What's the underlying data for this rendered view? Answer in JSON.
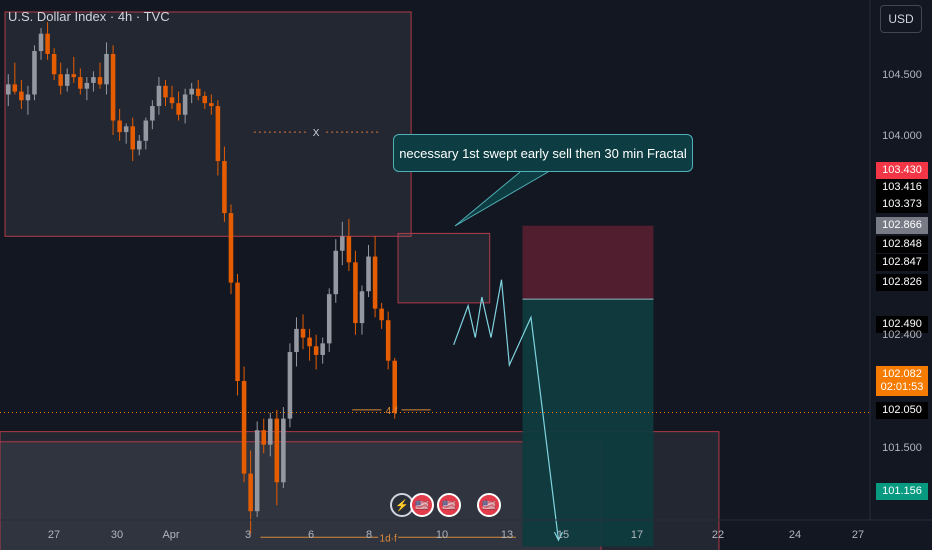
{
  "header": {
    "title": "U.S. Dollar Index · 4h · TVC"
  },
  "currency_button": {
    "label": "USD"
  },
  "callout": {
    "text": "necessary 1st swept early sell then 30 min Fractal"
  },
  "annotations": {
    "x_mark": "X",
    "fractal_4h": "4·f",
    "fractal_1d": "1d·f"
  },
  "colors": {
    "up": "#9598a1",
    "down": "#e65c00",
    "bg": "#131722",
    "zone_border": "#b23a48",
    "stop": "#5c2030",
    "target": "#0f3b3e",
    "accent": "#f57c00",
    "path": "#7fd3df"
  },
  "price_labels": [
    {
      "value": "104.500",
      "kind": "tick"
    },
    {
      "value": "104.000",
      "kind": "tick"
    },
    {
      "value": "103.430",
      "kind": "red"
    },
    {
      "value": "103.416",
      "kind": "dark"
    },
    {
      "value": "103.373",
      "kind": "dark"
    },
    {
      "value": "102.866",
      "kind": "grey"
    },
    {
      "value": "102.848",
      "kind": "dark"
    },
    {
      "value": "102.847",
      "kind": "dark"
    },
    {
      "value": "102.826",
      "kind": "dark"
    },
    {
      "value": "102.490",
      "kind": "dark"
    },
    {
      "value": "102.400",
      "kind": "tick"
    },
    {
      "value": "102.082",
      "kind": "orange",
      "sub": "02:01:53"
    },
    {
      "value": "102.050",
      "kind": "dark"
    },
    {
      "value": "101.500",
      "kind": "tick"
    },
    {
      "value": "101.156",
      "kind": "green"
    }
  ],
  "events": [
    "⚡",
    "🇺🇸",
    "🇺🇸",
    "🇺🇸"
  ],
  "chart_data": {
    "type": "candlestick",
    "symbol": "U.S. Dollar Index",
    "timeframe": "4h",
    "x_ticks": [
      "27",
      "30",
      "Apr",
      "3",
      "6",
      "8",
      "10",
      "13",
      "15",
      "17",
      "22",
      "24",
      "27"
    ],
    "y_ticks": [
      104.5,
      104.0,
      102.4,
      101.5
    ],
    "ylim": [
      100.9,
      105.1
    ],
    "current_price": 102.082,
    "countdown": "02:01:53",
    "ohlc": [
      [
        104.28,
        104.42,
        104.2,
        104.35
      ],
      [
        104.35,
        104.5,
        104.28,
        104.3
      ],
      [
        104.3,
        104.38,
        104.18,
        104.24
      ],
      [
        104.24,
        104.34,
        104.14,
        104.28
      ],
      [
        104.28,
        104.62,
        104.24,
        104.58
      ],
      [
        104.58,
        104.74,
        104.52,
        104.7
      ],
      [
        104.7,
        104.78,
        104.52,
        104.56
      ],
      [
        104.56,
        104.6,
        104.38,
        104.42
      ],
      [
        104.42,
        104.5,
        104.28,
        104.34
      ],
      [
        104.34,
        104.46,
        104.3,
        104.42
      ],
      [
        104.42,
        104.54,
        104.36,
        104.4
      ],
      [
        104.4,
        104.46,
        104.28,
        104.32
      ],
      [
        104.32,
        104.4,
        104.24,
        104.36
      ],
      [
        104.36,
        104.44,
        104.3,
        104.4
      ],
      [
        104.4,
        104.5,
        104.32,
        104.35
      ],
      [
        104.35,
        104.64,
        104.28,
        104.56
      ],
      [
        104.56,
        104.62,
        104.0,
        104.1
      ],
      [
        104.1,
        104.18,
        103.96,
        104.02
      ],
      [
        104.02,
        104.08,
        103.94,
        104.06
      ],
      [
        104.06,
        104.12,
        103.82,
        103.9
      ],
      [
        103.9,
        104.0,
        103.86,
        103.96
      ],
      [
        103.96,
        104.12,
        103.9,
        104.1
      ],
      [
        104.1,
        104.24,
        104.04,
        104.2
      ],
      [
        104.2,
        104.4,
        104.14,
        104.34
      ],
      [
        104.34,
        104.38,
        104.2,
        104.26
      ],
      [
        104.26,
        104.34,
        104.18,
        104.22
      ],
      [
        104.22,
        104.3,
        104.1,
        104.14
      ],
      [
        104.14,
        104.32,
        104.08,
        104.28
      ],
      [
        104.28,
        104.36,
        104.22,
        104.32
      ],
      [
        104.32,
        104.38,
        104.24,
        104.27
      ],
      [
        104.27,
        104.3,
        104.18,
        104.22
      ],
      [
        104.22,
        104.28,
        104.14,
        104.2
      ],
      [
        104.2,
        104.24,
        103.72,
        103.82
      ],
      [
        103.82,
        103.92,
        103.4,
        103.46
      ],
      [
        103.46,
        103.52,
        102.9,
        102.98
      ],
      [
        102.98,
        103.04,
        102.2,
        102.3
      ],
      [
        102.3,
        102.4,
        101.6,
        101.66
      ],
      [
        101.66,
        101.82,
        101.24,
        101.4
      ],
      [
        101.4,
        102.02,
        101.36,
        101.96
      ],
      [
        101.96,
        102.04,
        101.8,
        101.86
      ],
      [
        101.86,
        102.08,
        101.78,
        102.04
      ],
      [
        102.04,
        102.1,
        101.44,
        101.6
      ],
      [
        101.6,
        102.12,
        101.56,
        102.04
      ],
      [
        102.04,
        102.56,
        101.98,
        102.5
      ],
      [
        102.5,
        102.74,
        102.4,
        102.66
      ],
      [
        102.66,
        102.76,
        102.52,
        102.6
      ],
      [
        102.6,
        102.66,
        102.44,
        102.54
      ],
      [
        102.54,
        102.62,
        102.38,
        102.48
      ],
      [
        102.48,
        102.6,
        102.42,
        102.56
      ],
      [
        102.56,
        102.94,
        102.5,
        102.9
      ],
      [
        102.9,
        103.28,
        102.84,
        103.2
      ],
      [
        103.2,
        103.4,
        103.1,
        103.3
      ],
      [
        103.3,
        103.42,
        103.06,
        103.12
      ],
      [
        103.12,
        103.2,
        102.62,
        102.7
      ],
      [
        102.7,
        102.96,
        102.62,
        102.92
      ],
      [
        102.92,
        103.24,
        102.88,
        103.16
      ],
      [
        103.16,
        103.3,
        102.74,
        102.8
      ],
      [
        102.8,
        102.84,
        102.66,
        102.72
      ],
      [
        102.72,
        102.78,
        102.38,
        102.44
      ],
      [
        102.44,
        102.46,
        102.04,
        102.08
      ]
    ],
    "zones": [
      {
        "from": 0,
        "to": 62,
        "top": 104.85,
        "bottom": 103.3
      },
      {
        "from": 60,
        "to": 74,
        "top": 103.32,
        "bottom": 102.84
      },
      {
        "from": -1,
        "to": 109,
        "top": 101.95,
        "bottom": 100.95
      },
      {
        "from": -1,
        "to": 91,
        "top": 101.88,
        "bottom": 100.95
      }
    ],
    "trade": {
      "entry": 102.866,
      "stop": 103.373,
      "target": 101.156,
      "from": 79,
      "to": 99
    },
    "levels": [
      {
        "name": "X",
        "price": 104.02,
        "from": 38,
        "to": 57
      },
      {
        "name": "4·f",
        "price": 102.1,
        "from": 53,
        "to": 65
      },
      {
        "name": "1d·f",
        "price": 101.22,
        "from": 39,
        "to": 78
      }
    ],
    "projection": [
      [
        68.5,
        102.55
      ],
      [
        70.7,
        102.82
      ],
      [
        71.8,
        102.6
      ],
      [
        72.8,
        102.88
      ],
      [
        74.2,
        102.6
      ],
      [
        75.8,
        103.0
      ],
      [
        77.0,
        102.41
      ],
      [
        80.3,
        102.74
      ],
      [
        84.5,
        101.2
      ]
    ]
  }
}
